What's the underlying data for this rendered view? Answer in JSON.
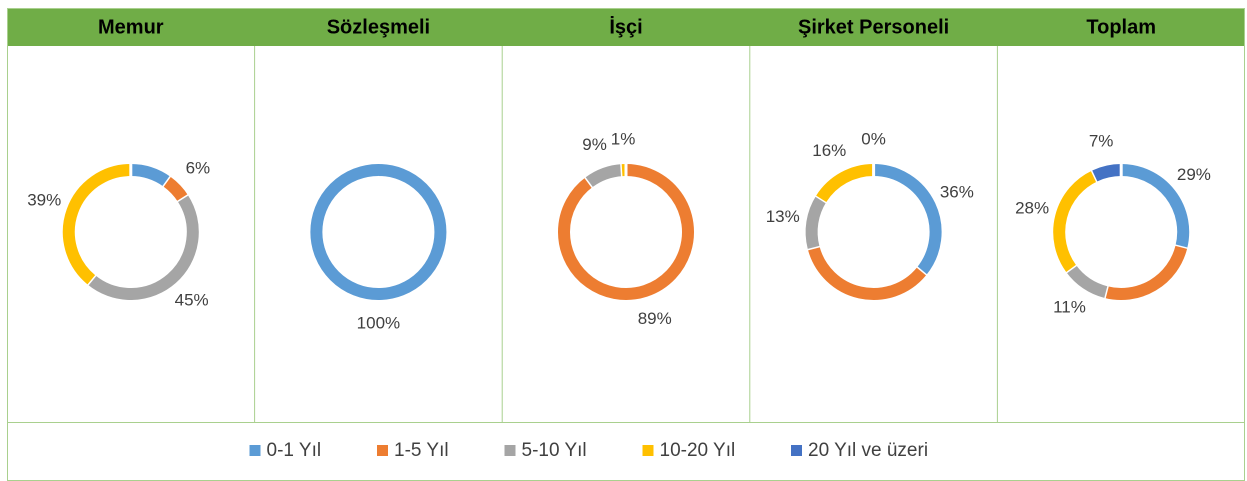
{
  "legend": {
    "names": [
      "0-1 Yıl",
      "1-5 Yıl",
      "5-10 Yıl",
      "10-20 Yıl",
      "20 Yıl ve üzeri"
    ],
    "colors": [
      "#5b9bd5",
      "#ed7d31",
      "#a5a5a5",
      "#ffc000",
      "#4472c4"
    ]
  },
  "chart_data": [
    {
      "type": "doughnut",
      "title": "Memur",
      "values": [
        10,
        6,
        45,
        39,
        0
      ],
      "value_labels": [
        null,
        "6%",
        "45%",
        "39%",
        null
      ]
    },
    {
      "type": "doughnut",
      "title": "Sözleşmeli",
      "values": [
        100,
        0,
        0,
        0,
        0
      ],
      "value_labels": [
        "100%",
        null,
        null,
        null,
        null
      ]
    },
    {
      "type": "doughnut",
      "title": "İşçi",
      "values": [
        0,
        89,
        9,
        1,
        0
      ],
      "value_labels": [
        null,
        "89%",
        "9%",
        "1%",
        null
      ]
    },
    {
      "type": "doughnut",
      "title": "Şirket Personeli",
      "values": [
        36,
        35,
        13,
        16,
        0
      ],
      "value_labels": [
        "36%",
        null,
        "13%",
        "16%",
        "0%"
      ]
    },
    {
      "type": "doughnut",
      "title": "Toplam",
      "values": [
        29,
        25,
        11,
        28,
        7
      ],
      "value_labels": [
        "29%",
        null,
        "11%",
        "28%",
        "7%"
      ]
    }
  ]
}
